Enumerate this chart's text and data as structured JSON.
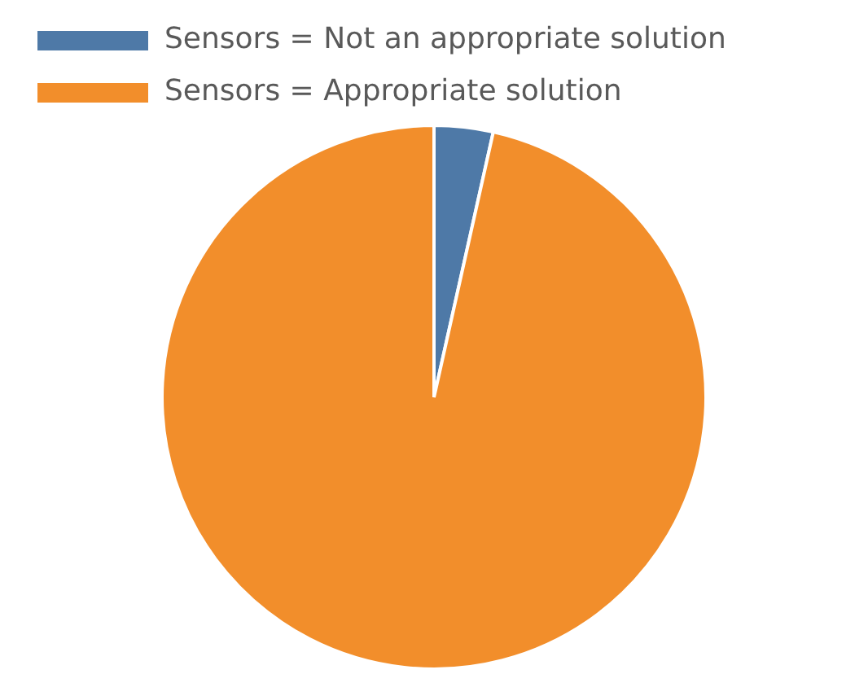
{
  "chart_data": {
    "type": "pie",
    "categories": [
      "Sensors = Not an appropriate solution",
      "Sensors = Appropriate solution"
    ],
    "values": [
      3.5,
      96.5
    ],
    "colors": [
      "#4e79a7",
      "#f28e2b"
    ],
    "legend": "top left"
  }
}
